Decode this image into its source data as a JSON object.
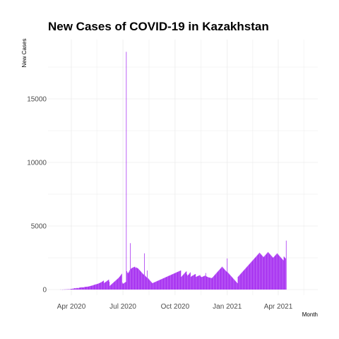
{
  "chart_data": {
    "type": "bar",
    "title": "New Cases of COVID-19 in Kazakhstan",
    "xlabel": "Month",
    "ylabel": "New Cases",
    "x_ticks": [
      "Apr 2020",
      "Jul 2020",
      "Oct 2020",
      "Jan 2021",
      "Apr 2021"
    ],
    "y_ticks": [
      0,
      5000,
      10000,
      15000
    ],
    "ylim": [
      0,
      18800
    ],
    "grid": true,
    "legend": "none",
    "bar_color": "#a020f0",
    "x_start_date": "2020-03-13",
    "x_end_date": "2021-05-31",
    "values": [
      9,
      0,
      0,
      1,
      6,
      0,
      12,
      8,
      10,
      17,
      9,
      21,
      13,
      33,
      22,
      16,
      28,
      29,
      49,
      55,
      52,
      74,
      62,
      82,
      95,
      103,
      116,
      86,
      118,
      131,
      121,
      99,
      132,
      146,
      157,
      161,
      173,
      181,
      167,
      174,
      186,
      169,
      198,
      212,
      210,
      217,
      224,
      230,
      226,
      239,
      248,
      262,
      278,
      287,
      296,
      307,
      321,
      334,
      350,
      366,
      381,
      397,
      412,
      410,
      430,
      446,
      461,
      478,
      498,
      512,
      541,
      563,
      582,
      610,
      640,
      671,
      703,
      520,
      550,
      580,
      612,
      645,
      680,
      712,
      745,
      780,
      618,
      300,
      340,
      380,
      420,
      460,
      500,
      540,
      580,
      620,
      660,
      700,
      740,
      780,
      820,
      860,
      900,
      950,
      1000,
      1060,
      1120,
      1180,
      1240,
      540,
      450,
      480,
      510,
      540,
      570,
      600,
      18700,
      1450,
      1340,
      1280,
      1360,
      1420,
      1520,
      3650,
      1610,
      1680,
      1700,
      1720,
      1740,
      1760,
      1780,
      1800,
      1700,
      1750,
      1720,
      1700,
      1680,
      1650,
      1600,
      1550,
      1500,
      1450,
      1400,
      1350,
      1300,
      1250,
      1200,
      1180,
      2850,
      1100,
      1050,
      1000,
      950,
      1500,
      900,
      850,
      800,
      750,
      700,
      650,
      600,
      550,
      500,
      520,
      540,
      560,
      580,
      600,
      620,
      640,
      660,
      680,
      700,
      720,
      740,
      760,
      780,
      800,
      820,
      840,
      860,
      880,
      900,
      920,
      940,
      960,
      980,
      1000,
      1020,
      1040,
      1060,
      1080,
      1100,
      1120,
      1140,
      1160,
      1180,
      1200,
      1220,
      1240,
      1260,
      1280,
      1300,
      1320,
      1340,
      1360,
      1380,
      1400,
      1420,
      1440,
      1460,
      1480,
      1500,
      1000,
      1050,
      1100,
      1150,
      1200,
      1250,
      1300,
      1350,
      1400,
      1430,
      1200,
      1100,
      1150,
      1180,
      1250,
      1300,
      1350,
      1000,
      1050,
      1080,
      1100,
      1120,
      1150,
      1180,
      1200,
      1220,
      1000,
      1020,
      1040,
      1060,
      1080,
      1100,
      1120,
      1140,
      1050,
      1000,
      980,
      1000,
      1020,
      1040,
      1060,
      1080,
      1100,
      1300,
      1050,
      1020,
      1000,
      980,
      960,
      950,
      940,
      930,
      920,
      910,
      900,
      950,
      1000,
      1050,
      1100,
      1150,
      1200,
      1250,
      1300,
      1350,
      1400,
      1450,
      1500,
      1550,
      1600,
      1650,
      1700,
      1750,
      1800,
      1750,
      1700,
      1650,
      1600,
      1550,
      1500,
      1450,
      1400,
      2450,
      1350,
      1300,
      1250,
      1200,
      1150,
      1100,
      1050,
      1000,
      950,
      900,
      850,
      800,
      750,
      700,
      650,
      600,
      550,
      500,
      1000,
      1050,
      1100,
      1150,
      1200,
      1250,
      1300,
      1350,
      1400,
      1450,
      1500,
      1550,
      1600,
      1650,
      1700,
      1750,
      1800,
      1850,
      1900,
      1950,
      2000,
      2050,
      2100,
      2150,
      2200,
      2250,
      2300,
      2350,
      2400,
      2450,
      2500,
      2550,
      2600,
      2650,
      2700,
      2750,
      2800,
      2850,
      2900,
      2850,
      2800,
      2750,
      2700,
      2650,
      2600,
      2550,
      2600,
      2650,
      2700,
      2750,
      2800,
      2850,
      2900,
      2950,
      2900,
      2850,
      2800,
      2750,
      2700,
      2650,
      2600,
      2550,
      2500,
      2550,
      2600,
      2650,
      2700,
      2750,
      2800,
      2850,
      2800,
      2750,
      2700,
      2650,
      2600,
      2550,
      2500,
      2450,
      2400,
      2350,
      2300,
      2600,
      2550,
      2500,
      2450,
      3850
    ]
  }
}
